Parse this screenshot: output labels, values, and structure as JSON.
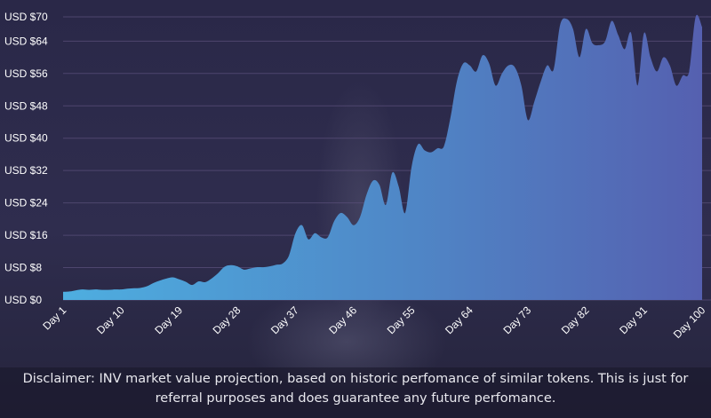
{
  "disclaimer": "Disclaimer: INV market value projection, based on historic perfomance of similar tokens. This is just for referral purposes and does guarantee any future perfomance.",
  "chart_data": {
    "type": "area",
    "title": "",
    "xlabel": "",
    "ylabel": "",
    "ylim": [
      0,
      70
    ],
    "xlim": [
      1,
      100
    ],
    "y_ticks": [
      {
        "value": 0,
        "label": "USD $0"
      },
      {
        "value": 8,
        "label": "USD $8"
      },
      {
        "value": 16,
        "label": "USD $16"
      },
      {
        "value": 24,
        "label": "USD $24"
      },
      {
        "value": 32,
        "label": "USD $32"
      },
      {
        "value": 40,
        "label": "USD $40"
      },
      {
        "value": 48,
        "label": "USD $48"
      },
      {
        "value": 56,
        "label": "USD $56"
      },
      {
        "value": 64,
        "label": "USD $64"
      },
      {
        "value": 70,
        "label": "USD $70"
      }
    ],
    "x_ticks": [
      {
        "value": 1,
        "label": "Day 1"
      },
      {
        "value": 10,
        "label": "Day 10"
      },
      {
        "value": 19,
        "label": "Day 19"
      },
      {
        "value": 28,
        "label": "Day 28"
      },
      {
        "value": 37,
        "label": "Day 37"
      },
      {
        "value": 46,
        "label": "Day 46"
      },
      {
        "value": 55,
        "label": "Day 55"
      },
      {
        "value": 64,
        "label": "Day 64"
      },
      {
        "value": 73,
        "label": "Day 73"
      },
      {
        "value": 82,
        "label": "Day 82"
      },
      {
        "value": 91,
        "label": "Day 91"
      },
      {
        "value": 100,
        "label": "Day 100"
      }
    ],
    "series": [
      {
        "name": "INV market value projection",
        "color_start": "#4eaee0",
        "color_end": "#5560b0",
        "points": [
          [
            1,
            2.0
          ],
          [
            2,
            2.1
          ],
          [
            3,
            2.4
          ],
          [
            4,
            2.6
          ],
          [
            5,
            2.5
          ],
          [
            6,
            2.6
          ],
          [
            7,
            2.5
          ],
          [
            8,
            2.5
          ],
          [
            9,
            2.6
          ],
          [
            10,
            2.6
          ],
          [
            11,
            2.8
          ],
          [
            12,
            2.9
          ],
          [
            13,
            3.0
          ],
          [
            14,
            3.4
          ],
          [
            15,
            4.2
          ],
          [
            16,
            4.8
          ],
          [
            17,
            5.3
          ],
          [
            18,
            5.6
          ],
          [
            19,
            5.1
          ],
          [
            20,
            4.5
          ],
          [
            21,
            3.7
          ],
          [
            22,
            4.6
          ],
          [
            23,
            4.4
          ],
          [
            24,
            5.3
          ],
          [
            25,
            6.6
          ],
          [
            26,
            8.2
          ],
          [
            27,
            8.6
          ],
          [
            28,
            8.3
          ],
          [
            29,
            7.5
          ],
          [
            30,
            7.8
          ],
          [
            31,
            8.1
          ],
          [
            32,
            8.1
          ],
          [
            33,
            8.3
          ],
          [
            34,
            8.7
          ],
          [
            35,
            9.0
          ],
          [
            36,
            11.0
          ],
          [
            37,
            16.5
          ],
          [
            38,
            18.5
          ],
          [
            39,
            15.0
          ],
          [
            40,
            16.5
          ],
          [
            41,
            15.5
          ],
          [
            42,
            15.5
          ],
          [
            43,
            19.5
          ],
          [
            44,
            21.5
          ],
          [
            45,
            20.5
          ],
          [
            46,
            18.5
          ],
          [
            47,
            20.5
          ],
          [
            48,
            26.0
          ],
          [
            49,
            29.5
          ],
          [
            50,
            28.5
          ],
          [
            51,
            23.5
          ],
          [
            52,
            31.5
          ],
          [
            53,
            28.0
          ],
          [
            54,
            21.5
          ],
          [
            55,
            33.0
          ],
          [
            56,
            38.5
          ],
          [
            57,
            37.0
          ],
          [
            58,
            36.5
          ],
          [
            59,
            37.5
          ],
          [
            60,
            38.0
          ],
          [
            61,
            45.0
          ],
          [
            62,
            54.0
          ],
          [
            63,
            58.5
          ],
          [
            64,
            58.0
          ],
          [
            65,
            56.5
          ],
          [
            66,
            60.5
          ],
          [
            67,
            58.5
          ],
          [
            68,
            53.0
          ],
          [
            69,
            56.0
          ],
          [
            70,
            58.0
          ],
          [
            71,
            57.5
          ],
          [
            72,
            53.0
          ],
          [
            73,
            44.5
          ],
          [
            74,
            49.0
          ],
          [
            75,
            54.0
          ],
          [
            76,
            58.0
          ],
          [
            77,
            57.0
          ],
          [
            78,
            68.0
          ],
          [
            79,
            69.5
          ],
          [
            80,
            67.0
          ],
          [
            81,
            60.0
          ],
          [
            82,
            67.0
          ],
          [
            83,
            63.5
          ],
          [
            84,
            63.0
          ],
          [
            85,
            64.0
          ],
          [
            86,
            69.0
          ],
          [
            87,
            65.5
          ],
          [
            88,
            62.0
          ],
          [
            89,
            66.0
          ],
          [
            90,
            53.0
          ],
          [
            91,
            66.0
          ],
          [
            92,
            60.0
          ],
          [
            93,
            56.5
          ],
          [
            94,
            60.0
          ],
          [
            95,
            58.0
          ],
          [
            96,
            53.0
          ],
          [
            97,
            55.5
          ],
          [
            98,
            56.5
          ],
          [
            99,
            70.0
          ],
          [
            100,
            67.5
          ]
        ]
      }
    ]
  }
}
